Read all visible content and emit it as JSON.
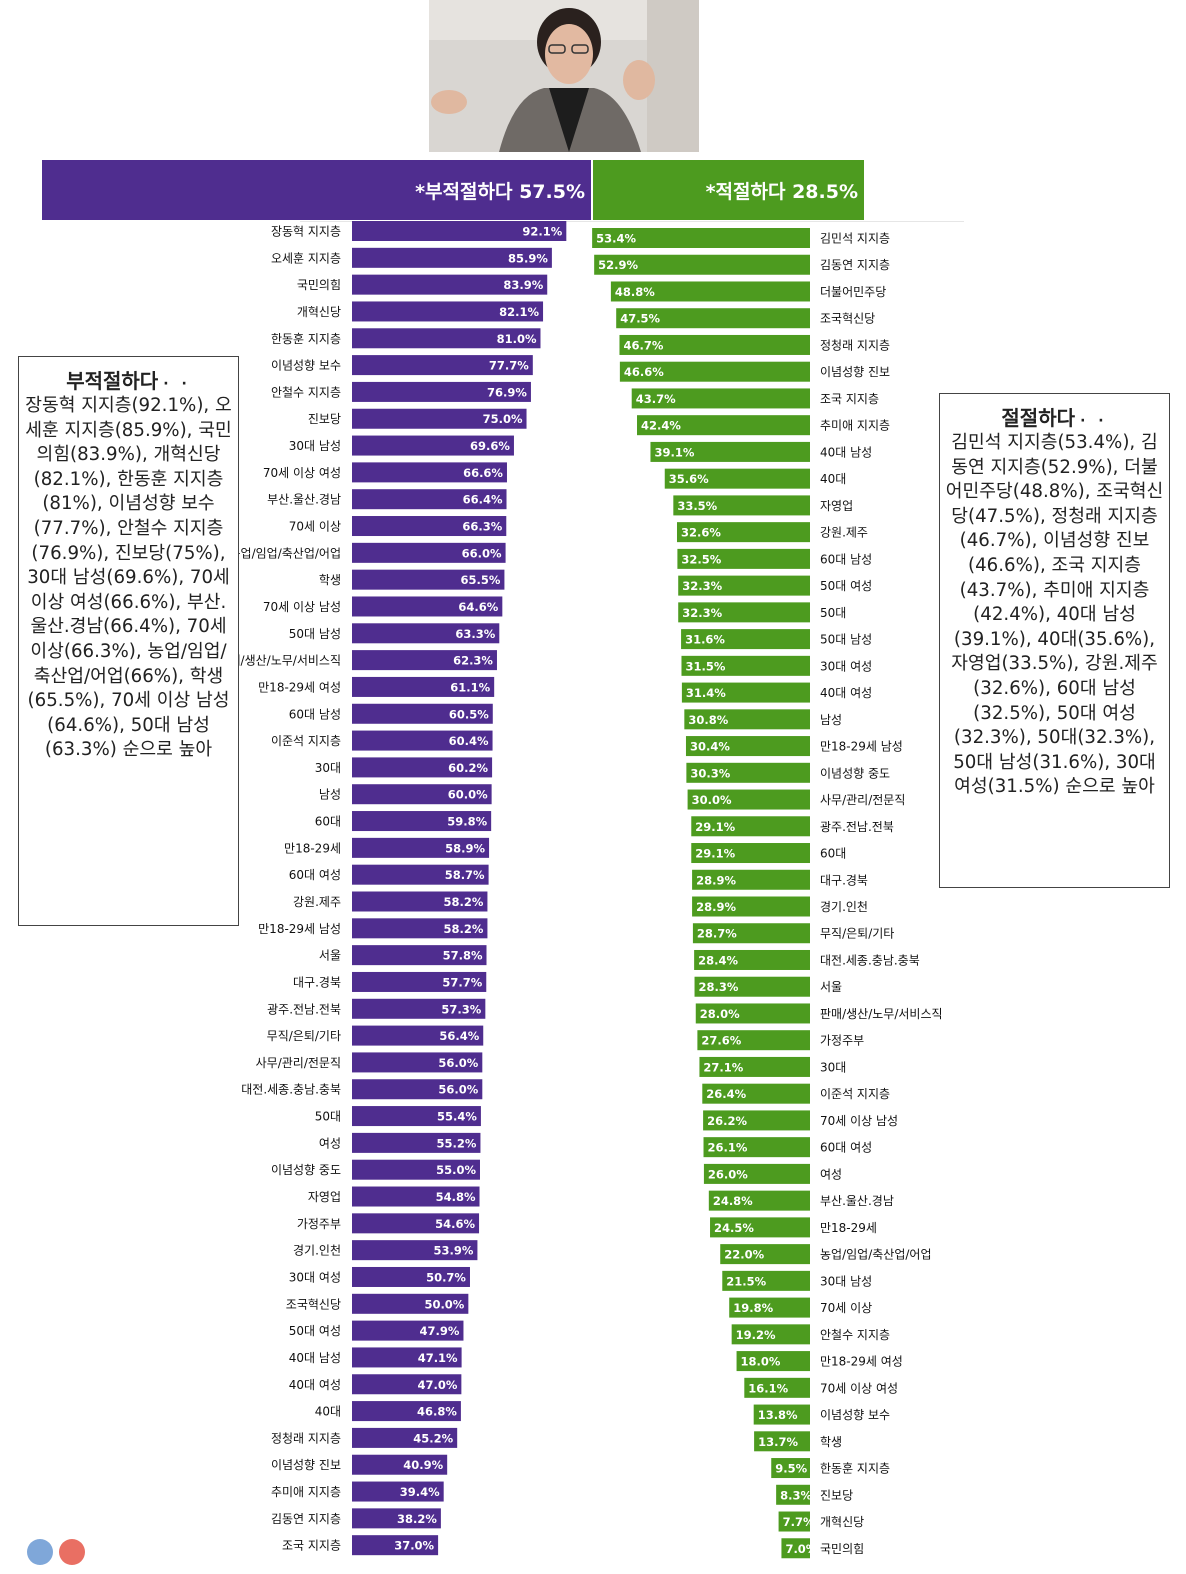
{
  "banner": {
    "negative_label": "*부적절하다 57.5%",
    "positive_label": "*적절하다 28.5%",
    "negative_color": "#4f2d8f",
    "positive_color": "#4d9b1f"
  },
  "notes": {
    "left": {
      "title": "부적절하다",
      "dots": "· ·",
      "body": "장동혁 지지층(92.1%), 오세훈 지지층(85.9%), 국민의힘(83.9%), 개혁신당(82.1%), 한동훈 지지층(81%), 이념성향 보수(77.7%), 안철수 지지층(76.9%), 진보당(75%), 30대 남성(69.6%), 70세 이상 여성(66.6%), 부산.울산.경남(66.4%), 70세 이상(66.3%), 농업/임업/축산업/어업(66%), 학생(65.5%), 70세 이상 남성(64.6%), 50대 남성(63.3%) 순으로 높아"
    },
    "right": {
      "title": "절절하다",
      "dots": "· ·",
      "body": "김민석 지지층(53.4%), 김동연 지지층(52.9%), 더불어민주당(48.8%), 조국혁신당(47.5%), 정청래 지지층(46.7%), 이념성향 진보(46.6%), 조국 지지층(43.7%), 추미애 지지층(42.4%), 40대 남성(39.1%), 40대(35.6%), 자영업(33.5%), 강원.제주(32.6%), 60대 남성(32.5%), 50대 여성(32.3%), 50대(32.3%), 50대 남성(31.6%), 30대 여성(31.5%) 순으로 높아"
    }
  },
  "chart_data": [
    {
      "type": "bar",
      "orientation": "horizontal",
      "title": "*부적절하다 57.5%",
      "color": "#4f2d8f",
      "value_suffix": "%",
      "categories": [
        "장동혁 지지층",
        "오세훈 지지층",
        "국민의힘",
        "개혁신당",
        "한동훈 지지층",
        "이념성향 보수",
        "안철수 지지층",
        "진보당",
        "30대 남성",
        "70세 이상 여성",
        "부산.울산.경남",
        "70세 이상",
        "농업/임업/축산업/어업",
        "학생",
        "70세 이상 남성",
        "50대 남성",
        "판매/생산/노무/서비스직",
        "만18-29세 여성",
        "60대 남성",
        "이준석 지지층",
        "30대",
        "남성",
        "60대",
        "만18-29세",
        "60대 여성",
        "강원.제주",
        "만18-29세 남성",
        "서울",
        "대구.경북",
        "광주.전남.전북",
        "무직/은퇴/기타",
        "사무/관리/전문직",
        "대전.세종.충남.충북",
        "50대",
        "여성",
        "이념성향 중도",
        "자영업",
        "가정주부",
        "경기.인천",
        "30대 여성",
        "조국혁신당",
        "50대 여성",
        "40대 남성",
        "40대 여성",
        "40대",
        "정청래 지지층",
        "이념성향 진보",
        "추미애 지지층",
        "김동연 지지층",
        "조국 지지층"
      ],
      "values": [
        92.1,
        85.9,
        83.9,
        82.1,
        81.0,
        77.7,
        76.9,
        75.0,
        69.6,
        66.6,
        66.4,
        66.3,
        66.0,
        65.5,
        64.6,
        63.3,
        62.3,
        61.1,
        60.5,
        60.4,
        60.2,
        60.0,
        59.8,
        58.9,
        58.7,
        58.2,
        58.2,
        57.8,
        57.7,
        57.3,
        56.4,
        56.0,
        56.0,
        55.4,
        55.2,
        55.0,
        54.8,
        54.6,
        53.9,
        50.7,
        50.0,
        47.9,
        47.1,
        47.0,
        46.8,
        45.2,
        40.9,
        39.4,
        38.2,
        37.0
      ],
      "labels": [
        "92.1%",
        "85.9%",
        "83.9%",
        "82.1%",
        "81.0%",
        "77.7%",
        "76.9%",
        "75.0%",
        "69.6%",
        "66.6%",
        "66.4%",
        "66.3%",
        "66.0%",
        "65.5%",
        "64.6%",
        "63.3%",
        "62.3%",
        "61.1%",
        "60.5%",
        "60.4%",
        "60.2%",
        "60.0%",
        "59.8%",
        "58.9%",
        "58.7%",
        "58.2%",
        "58.2%",
        "57.8%",
        "57.7%",
        "57.3%",
        "56.4%",
        "56.0%",
        "56.0%",
        "55.4%",
        "55.2%",
        "55.0%",
        "54.8%",
        "54.6%",
        "53.9%",
        "50.7%",
        "50.0%",
        "47.9%",
        "47.1%",
        "47.0%",
        "46.8%",
        "45.2%",
        "40.9%",
        "39.4%",
        "38.2%",
        "37.0%"
      ]
    },
    {
      "type": "bar",
      "orientation": "horizontal",
      "title": "*적절하다 28.5%",
      "color": "#4d9b1f",
      "value_suffix": "%",
      "categories": [
        "김민석 지지층",
        "김동연 지지층",
        "더불어민주당",
        "조국혁신당",
        "정청래 지지층",
        "이념성향 진보",
        "조국 지지층",
        "추미애 지지층",
        "40대 남성",
        "40대",
        "자영업",
        "강원.제주",
        "60대 남성",
        "50대 여성",
        "50대",
        "50대 남성",
        "30대 여성",
        "40대 여성",
        "남성",
        "만18-29세 남성",
        "이념성향 중도",
        "사무/관리/전문직",
        "광주.전남.전북",
        "60대",
        "대구.경북",
        "경기.인천",
        "무직/은퇴/기타",
        "대전.세종.충남.충북",
        "서울",
        "판매/생산/노무/서비스직",
        "가정주부",
        "30대",
        "이준석 지지층",
        "70세 이상 남성",
        "60대 여성",
        "여성",
        "부산.울산.경남",
        "만18-29세",
        "농업/임업/축산업/어업",
        "30대 남성",
        "70세 이상",
        "안철수 지지층",
        "만18-29세 여성",
        "70세 이상 여성",
        "이념성향 보수",
        "학생",
        "한동훈 지지층",
        "진보당",
        "개혁신당",
        "국민의힘"
      ],
      "values": [
        53.4,
        52.9,
        48.8,
        47.5,
        46.7,
        46.6,
        43.7,
        42.4,
        39.1,
        35.6,
        33.5,
        32.6,
        32.5,
        32.3,
        32.3,
        31.6,
        31.5,
        31.4,
        30.8,
        30.4,
        30.3,
        30.0,
        29.1,
        29.1,
        28.9,
        28.9,
        28.7,
        28.4,
        28.3,
        28.0,
        27.6,
        27.1,
        26.4,
        26.2,
        26.1,
        26.0,
        24.8,
        24.5,
        22.0,
        21.5,
        19.8,
        19.2,
        18.0,
        16.1,
        13.8,
        13.7,
        9.5,
        8.3,
        7.7,
        7.0
      ],
      "labels": [
        "53.4%",
        "52.9%",
        "48.8%",
        "47.5%",
        "46.7%",
        "46.6%",
        "43.7%",
        "42.4%",
        "39.1%",
        "35.6%",
        "33.5%",
        "32.6%",
        "32.5%",
        "32.3%",
        "32.3%",
        "31.6%",
        "31.5%",
        "31.4%",
        "30.8%",
        "30.4%",
        "30.3%",
        "30.0%",
        "29.1%",
        "29.1%",
        "28.9%",
        "28.9%",
        "28.7%",
        "28.4%",
        "28.3%",
        "28.0%",
        "27.6%",
        "27.1%",
        "26.4%",
        "26.2%",
        "26.1%",
        "26.0%",
        "24.8%",
        "24.5%",
        "22.0%",
        "21.5%",
        "19.8%",
        "19.2%",
        "18.0%",
        "16.1%",
        "13.8%",
        "13.7%",
        "9.5%",
        "8.3%",
        "7.7%",
        "7.0%"
      ]
    }
  ]
}
